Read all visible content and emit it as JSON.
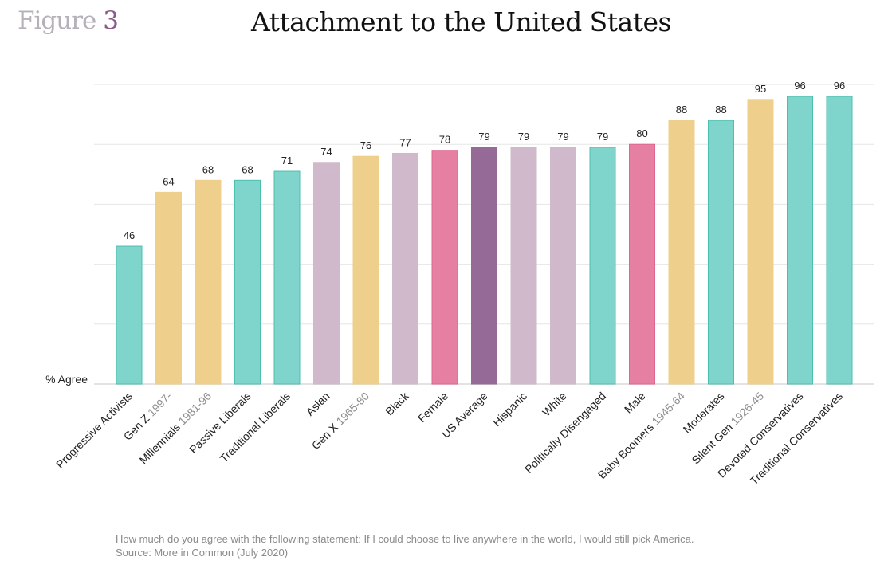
{
  "figure_label": "Figure",
  "figure_number": "3",
  "footnote": {
    "question": "How much do you agree with the following statement: If I could choose to live anywhere in the world, I would still pick America.",
    "source": "Source: More in Common (July 2020)"
  },
  "colors": {
    "teal": "#7fd5cc",
    "teal_border": "#4cbfb0",
    "yellow": "#eecf8b",
    "lavender": "#d0b9ca",
    "pink": "#e680a3",
    "purple": "#956a96"
  },
  "chart_data": {
    "type": "bar",
    "title": "Attachment to the United States",
    "ylabel": "% Agree",
    "xlabel": "",
    "ylim": [
      0,
      100
    ],
    "grid": true,
    "categories": [
      {
        "label": "Progressive Activists",
        "suffix": "",
        "color": "teal"
      },
      {
        "label": "Gen Z",
        "suffix": "1997-",
        "color": "yellow"
      },
      {
        "label": "Millennials",
        "suffix": "1981-96",
        "color": "yellow"
      },
      {
        "label": "Passive Liberals",
        "suffix": "",
        "color": "teal"
      },
      {
        "label": "Traditional Liberals",
        "suffix": "",
        "color": "teal"
      },
      {
        "label": "Asian",
        "suffix": "",
        "color": "lavender"
      },
      {
        "label": "Gen X",
        "suffix": "1965-80",
        "color": "yellow"
      },
      {
        "label": "Black",
        "suffix": "",
        "color": "lavender"
      },
      {
        "label": "Female",
        "suffix": "",
        "color": "pink"
      },
      {
        "label": "US Average",
        "suffix": "",
        "color": "purple"
      },
      {
        "label": "Hispanic",
        "suffix": "",
        "color": "lavender"
      },
      {
        "label": "White",
        "suffix": "",
        "color": "lavender"
      },
      {
        "label": "Politically Disengaged",
        "suffix": "",
        "color": "teal"
      },
      {
        "label": "Male",
        "suffix": "",
        "color": "pink"
      },
      {
        "label": "Baby Boomers",
        "suffix": "1945-64",
        "color": "yellow"
      },
      {
        "label": "Moderates",
        "suffix": "",
        "color": "teal"
      },
      {
        "label": "Silent Gen",
        "suffix": "1926-45",
        "color": "yellow"
      },
      {
        "label": "Devoted Conservatives",
        "suffix": "",
        "color": "teal"
      },
      {
        "label": "Traditional Conservatives",
        "suffix": "",
        "color": "teal"
      }
    ],
    "values": [
      46,
      64,
      68,
      68,
      71,
      74,
      76,
      77,
      78,
      79,
      79,
      79,
      79,
      80,
      88,
      88,
      95,
      96,
      96
    ]
  }
}
